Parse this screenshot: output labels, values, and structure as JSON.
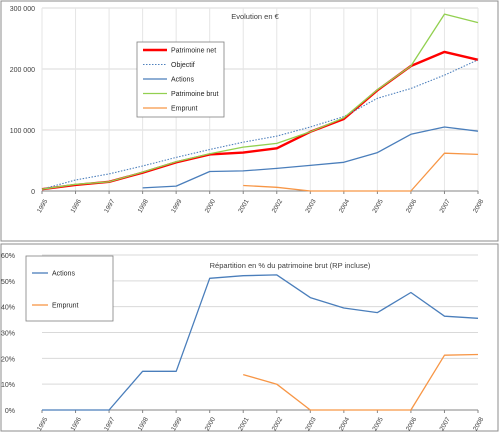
{
  "chart_data": [
    {
      "type": "line",
      "title": "Evolution  en €",
      "x": [
        "1995",
        "1996",
        "1997",
        "1998",
        "1999",
        "2000",
        "2001",
        "2002",
        "2003",
        "2004",
        "2005",
        "2006",
        "2007",
        "2008"
      ],
      "ylim": [
        0,
        300000
      ],
      "yticks": [
        0,
        100000,
        200000,
        300000
      ],
      "ytick_labels": [
        "0",
        "100 000",
        "200 000",
        "300 000"
      ],
      "grid": true,
      "legend_position": "upper-left",
      "series": [
        {
          "name": "Patrimoine net",
          "color": "#ff0000",
          "style": "solid-thick",
          "values": [
            3000,
            10000,
            15000,
            30000,
            47000,
            60000,
            63000,
            70000,
            97000,
            118000,
            165000,
            205000,
            228000,
            215000
          ]
        },
        {
          "name": "Objectif",
          "color": "#4f81bd",
          "style": "dotted",
          "values": [
            3000,
            18000,
            28000,
            41000,
            55000,
            68000,
            80000,
            90000,
            105000,
            122000,
            152000,
            168000,
            190000,
            215000
          ]
        },
        {
          "name": "Actions",
          "color": "#4a7ebb",
          "style": "solid",
          "values": [
            null,
            null,
            null,
            5000,
            8000,
            32000,
            33000,
            37000,
            42000,
            47000,
            63000,
            93000,
            105000,
            98000
          ]
        },
        {
          "name": "Patrimoine brut",
          "color": "#92d050",
          "style": "solid",
          "values": [
            3000,
            11000,
            15000,
            31000,
            48000,
            61000,
            72000,
            78000,
            97000,
            120000,
            166000,
            205000,
            290000,
            276000
          ]
        },
        {
          "name": "Emprunt",
          "color": "#f79646",
          "style": "solid",
          "values": [
            null,
            null,
            null,
            null,
            null,
            null,
            9000,
            6000,
            0,
            0,
            0,
            0,
            62000,
            60000
          ]
        }
      ]
    },
    {
      "type": "line",
      "title": "Répartition en % du patrimoine brut (RP incluse)",
      "x": [
        "1995",
        "1996",
        "1997",
        "1998",
        "1999",
        "2000",
        "2001",
        "2002",
        "2003",
        "2004",
        "2005",
        "2006",
        "2007",
        "2008"
      ],
      "ylim": [
        0,
        60
      ],
      "yticks": [
        0,
        10,
        20,
        30,
        40,
        50,
        60
      ],
      "ytick_labels": [
        "0%",
        "10%",
        "20%",
        "30%",
        "40%",
        "50%",
        "60%"
      ],
      "grid": true,
      "legend_position": "upper-left",
      "series": [
        {
          "name": "Actions",
          "color": "#4a7ebb",
          "values": [
            0,
            0,
            0,
            15,
            15,
            51,
            52,
            52.3,
            43.5,
            39.5,
            37.7,
            45.5,
            36.3,
            35.5
          ]
        },
        {
          "name": "Emprunt",
          "color": "#f79646",
          "values": [
            null,
            null,
            null,
            null,
            null,
            null,
            13.7,
            10,
            0,
            0,
            0,
            0,
            21.2,
            21.5
          ]
        }
      ]
    }
  ]
}
